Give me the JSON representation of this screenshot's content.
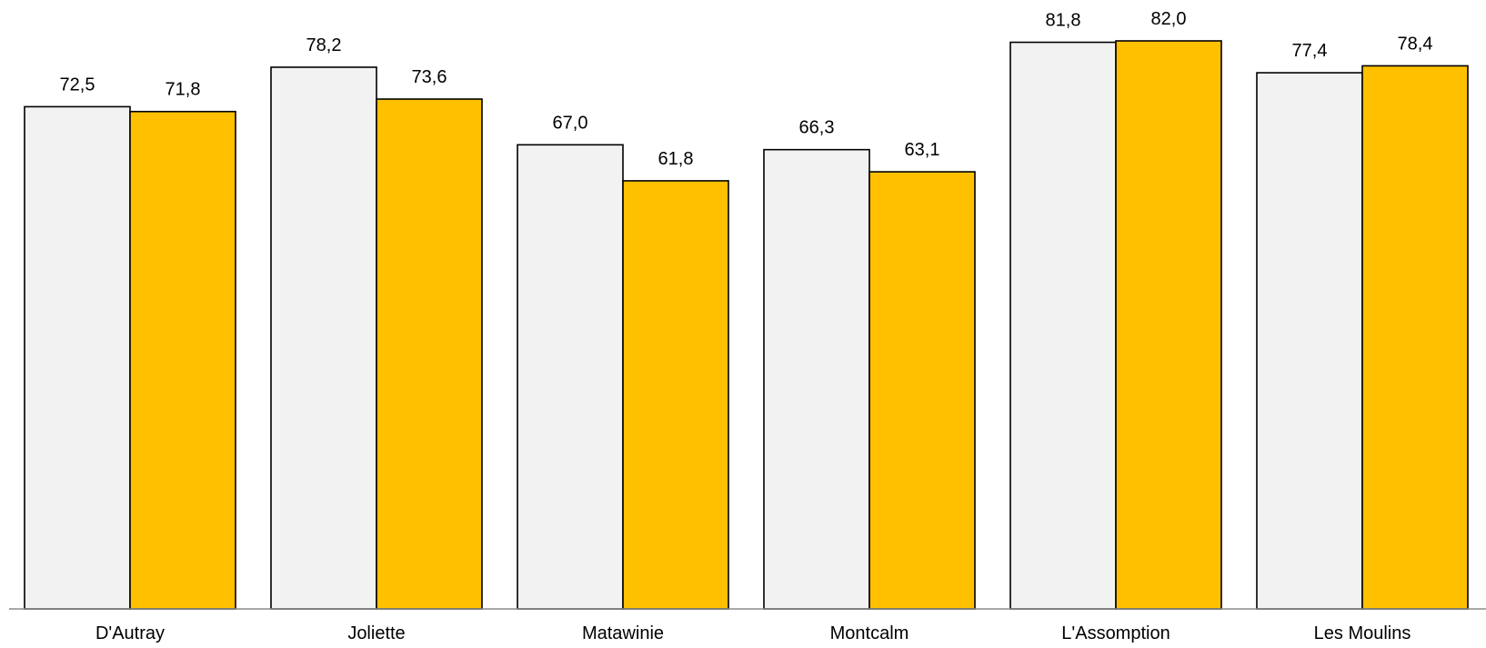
{
  "chart_data": {
    "type": "bar",
    "categories": [
      "D'Autray",
      "Joliette",
      "Matawinie",
      "Montcalm",
      "L'Assomption",
      "Les Moulins"
    ],
    "series": [
      {
        "values": [
          72.5,
          78.2,
          67.0,
          66.3,
          81.8,
          77.4
        ],
        "labels": [
          "72,5",
          "78,2",
          "67,0",
          "66,3",
          "81,8",
          "77,4"
        ],
        "color": "#f2f2f2"
      },
      {
        "values": [
          71.8,
          73.6,
          61.8,
          63.1,
          82.0,
          78.4
        ],
        "labels": [
          "71,8",
          "73,6",
          "61,8",
          "63,1",
          "82,0",
          "78,4"
        ],
        "color": "#ffc000"
      }
    ],
    "ylim": [
      0,
      82
    ],
    "grid": false,
    "legend": "none",
    "title": "",
    "xlabel": "",
    "ylabel": ""
  }
}
